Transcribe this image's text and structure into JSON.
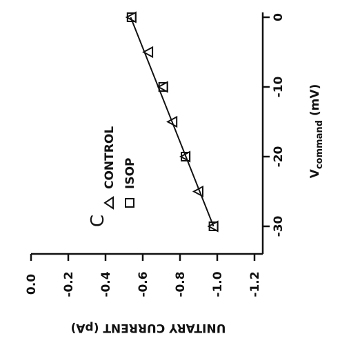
{
  "chart_data": {
    "type": "scatter",
    "panel_label": "C",
    "x_axis": {
      "label_main": "V",
      "label_sub": "command",
      "label_unit": "(mV)",
      "range": [
        -33,
        0
      ],
      "ticks": [
        0,
        -10,
        -20,
        -30
      ],
      "tick_labels": [
        "0",
        "-10",
        "-20",
        "-30"
      ]
    },
    "y_axis": {
      "label": "UNITARY CURRENT (pA)",
      "range": [
        -1.2,
        0.0
      ],
      "ticks": [
        0.0,
        -0.2,
        -0.4,
        -0.6,
        -0.8,
        -1.0,
        -1.2
      ],
      "tick_labels": [
        "0.0",
        "-0.2",
        "-0.4",
        "-0.6",
        "-0.8",
        "-1.0",
        "-1.2"
      ]
    },
    "series": [
      {
        "name": "CONTROL",
        "marker": "triangle",
        "points": [
          [
            0,
            -0.54
          ],
          [
            -5,
            -0.63
          ],
          [
            -10,
            -0.71
          ],
          [
            -15,
            -0.76
          ],
          [
            -20,
            -0.83
          ],
          [
            -25,
            -0.9
          ],
          [
            -30,
            -0.98
          ]
        ]
      },
      {
        "name": "ISOP",
        "marker": "square",
        "points": [
          [
            0,
            -0.54
          ],
          [
            -10,
            -0.71
          ],
          [
            -20,
            -0.83
          ],
          [
            -30,
            -0.98
          ]
        ]
      }
    ],
    "fit_line": [
      [
        0,
        -0.535
      ],
      [
        -30,
        -0.98
      ]
    ],
    "grid": false,
    "legend": "top-left"
  }
}
